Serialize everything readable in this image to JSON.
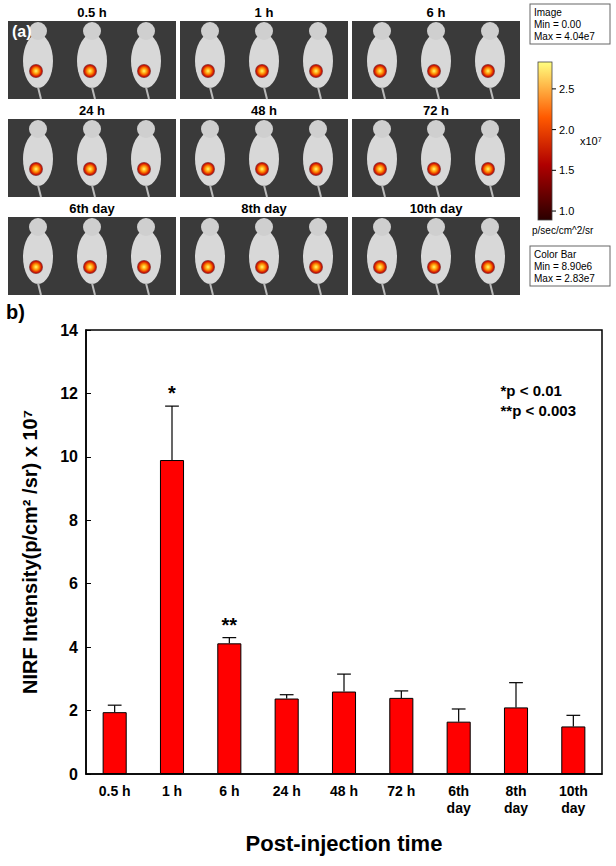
{
  "panel_a": {
    "label": "(a)",
    "images": [
      "0.5 h",
      "1 h",
      "6 h",
      "24 h",
      "48 h",
      "72 h",
      "6th day",
      "8th day",
      "10th day"
    ],
    "image_box": [
      "Image",
      "Min = 0.00",
      "Max = 4.04e7"
    ],
    "colorbar": {
      "range": [
        0.89,
        2.83
      ],
      "ticks": [
        {
          "value": 1,
          "label": "1.0"
        },
        1.5,
        {
          "value": 2,
          "label": "2.0"
        },
        2.5
      ],
      "multiplier": "x10⁷",
      "unit": "p/sec/cm^2/sr"
    },
    "colorbar_box": [
      "Color Bar",
      "Min = 8.90e6",
      "Max = 2.83e7"
    ]
  },
  "chart_data": {
    "type": "bar",
    "panel_label": "b)",
    "x_label": "Post-injection time",
    "y_label": "NIRF Intensity(p/cm² /sr) x 10⁷",
    "categories": [
      "0.5 h",
      "1 h",
      "6 h",
      "24 h",
      "48 h",
      "72 h",
      "6th day",
      "8th day",
      "10th day"
    ],
    "values": [
      1.95,
      9.9,
      4.12,
      2.38,
      2.6,
      2.4,
      1.65,
      2.1,
      1.5
    ],
    "errors": [
      0.22,
      1.7,
      0.18,
      0.12,
      0.55,
      0.22,
      0.4,
      0.78,
      0.35
    ],
    "annotations": [
      {
        "category": "1 h",
        "text": "*"
      },
      {
        "category": "6 h",
        "text": "**"
      }
    ],
    "significance": [
      "*p < 0.01",
      "**p < 0.003"
    ],
    "color": "#ff0000",
    "ylim": [
      0,
      14
    ],
    "yticks": [
      0,
      2,
      4,
      6,
      8,
      10,
      12,
      14
    ],
    "grid": false
  }
}
